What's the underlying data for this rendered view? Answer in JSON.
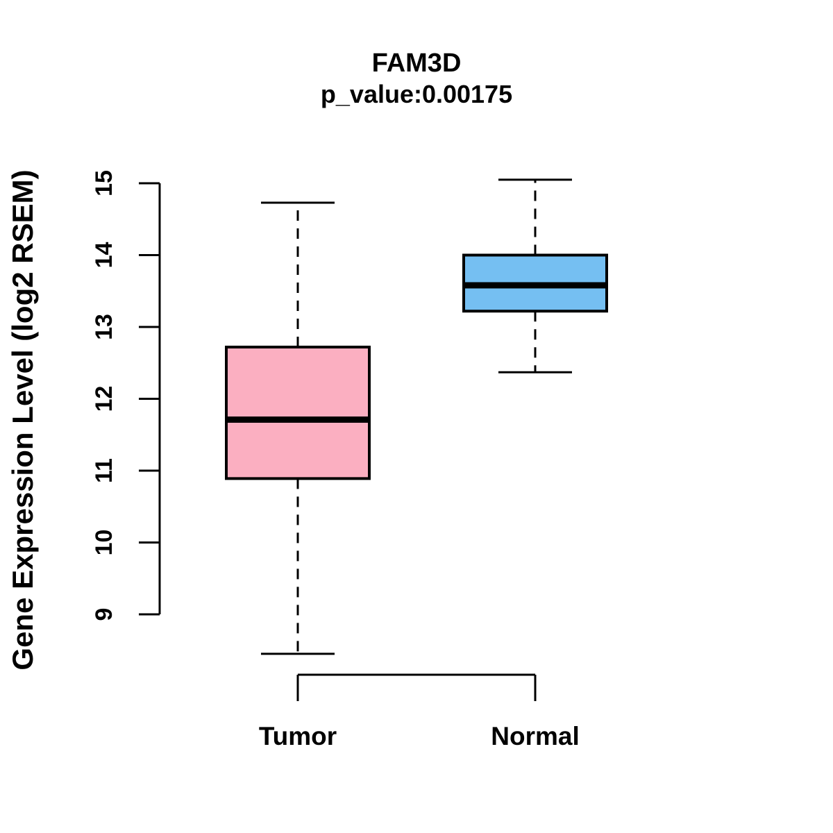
{
  "figure": {
    "title": "FAM3D",
    "subtitle": "p_value:0.00175",
    "ylabel": "Gene Expression Level (log2 RSEM)"
  },
  "chart_data": {
    "type": "boxplot",
    "title": "FAM3D",
    "subtitle": "p_value:0.00175",
    "xlabel": "",
    "ylabel": "Gene Expression Level (log2 RSEM)",
    "ylim": [
      9,
      15
    ],
    "yticks": [
      9,
      10,
      11,
      12,
      13,
      14,
      15
    ],
    "grid": false,
    "legend": "none",
    "categories": [
      "Tumor",
      "Normal"
    ],
    "groups": [
      {
        "label": "Tumor",
        "fill_color": "#FBAFC1",
        "lower_whisker": 8.45,
        "q1": 10.89,
        "median": 11.71,
        "q3": 12.72,
        "upper_whisker": 14.73
      },
      {
        "label": "Normal",
        "fill_color": "#75BFF2",
        "lower_whisker": 12.37,
        "q1": 13.22,
        "median": 13.58,
        "q3": 14.0,
        "upper_whisker": 15.05
      }
    ],
    "style": {
      "stroke_color": "#000000",
      "whisker_line_style": "dashed",
      "background": "#ffffff"
    }
  }
}
